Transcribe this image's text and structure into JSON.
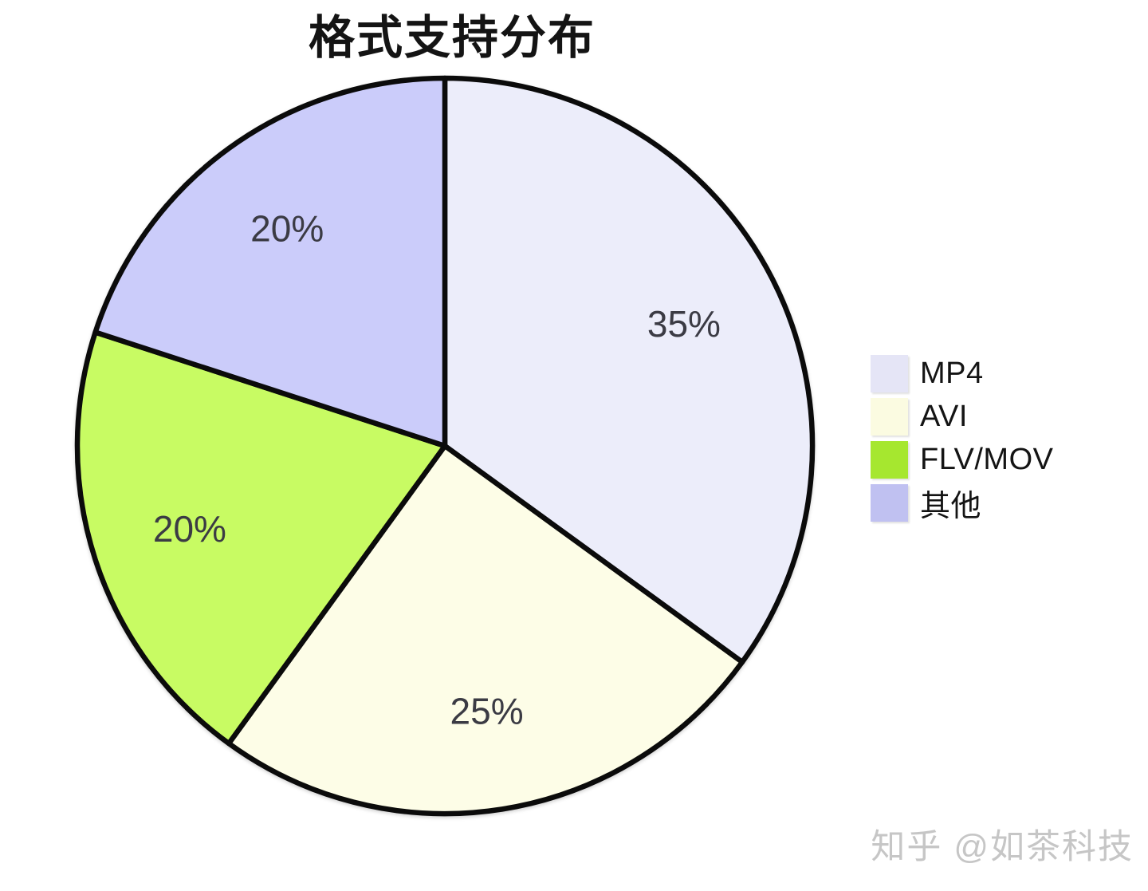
{
  "chart_data": {
    "type": "pie",
    "title": "格式支持分布",
    "categories": [
      "MP4",
      "AVI",
      "FLV/MOV",
      "其他"
    ],
    "values": [
      35,
      25,
      20,
      20
    ],
    "unit": "%",
    "labels": [
      "35%",
      "25%",
      "20%",
      "20%"
    ],
    "slice_colors": [
      "#ECEDFA",
      "#FDFDE7",
      "#C8FB63",
      "#CBCCFA"
    ],
    "outline_color": "#0b0b0b",
    "label_color": "#3b3b44",
    "start_angle_deg": 0,
    "direction": "clockwise",
    "label_radius_ratio": 0.73,
    "legend": {
      "position": "right",
      "entries": [
        {
          "label": "MP4",
          "color": "#E5E5F6"
        },
        {
          "label": "AVI",
          "color": "#FBFBE1"
        },
        {
          "label": "FLV/MOV",
          "color": "#A6E72F"
        },
        {
          "label": "其他",
          "color": "#C0C1F1"
        }
      ]
    }
  },
  "watermark": "知乎 @如茶科技"
}
